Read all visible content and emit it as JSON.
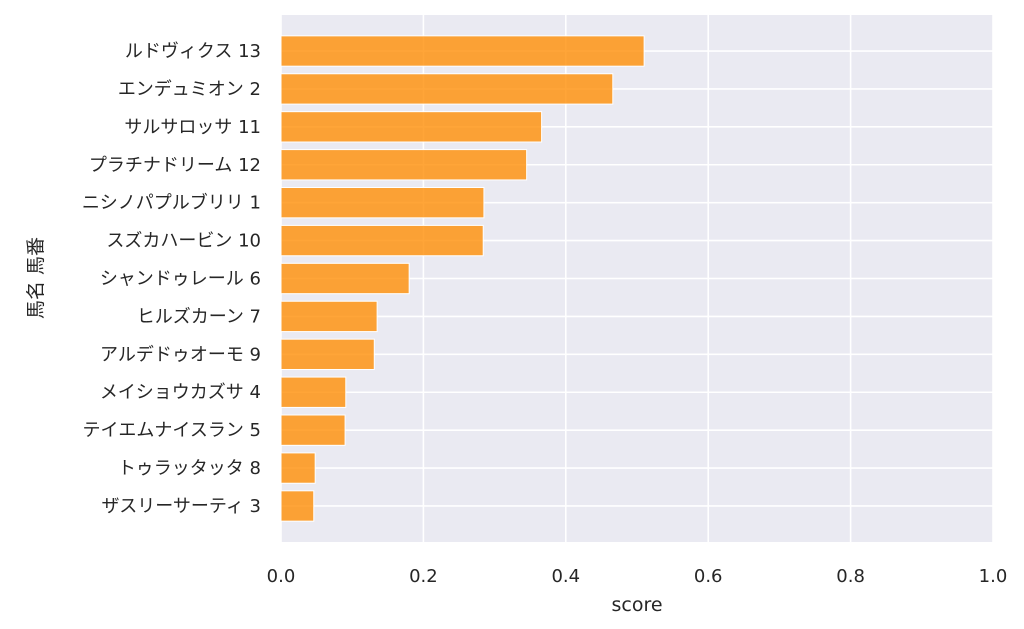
{
  "chart_data": {
    "type": "bar",
    "orientation": "horizontal",
    "categories": [
      "ルドヴィクス 13",
      "エンデュミオン 2",
      "サルサロッサ 11",
      "プラチナドリーム 12",
      "ニシノパプルブリリ 1",
      "スズカハービン 10",
      "シャンドゥレール 6",
      "ヒルズカーン 7",
      "アルデドゥオーモ 9",
      "メイショウカズサ 4",
      "テイエムナイスラン 5",
      "トゥラッタッタ 8",
      "ザスリーサーティ 3"
    ],
    "values": [
      0.51,
      0.466,
      0.366,
      0.345,
      0.285,
      0.284,
      0.18,
      0.135,
      0.131,
      0.091,
      0.09,
      0.048,
      0.046
    ],
    "xlabel": "score",
    "ylabel": "馬名 馬番",
    "xlim": [
      0.0,
      1.0
    ],
    "xticks": [
      "0.0",
      "0.2",
      "0.4",
      "0.6",
      "0.8",
      "1.0"
    ],
    "grid": true,
    "colors": {
      "bar": "#FF8C00",
      "plot_background": "#EAEAF2",
      "grid": "#FFFFFF"
    }
  }
}
